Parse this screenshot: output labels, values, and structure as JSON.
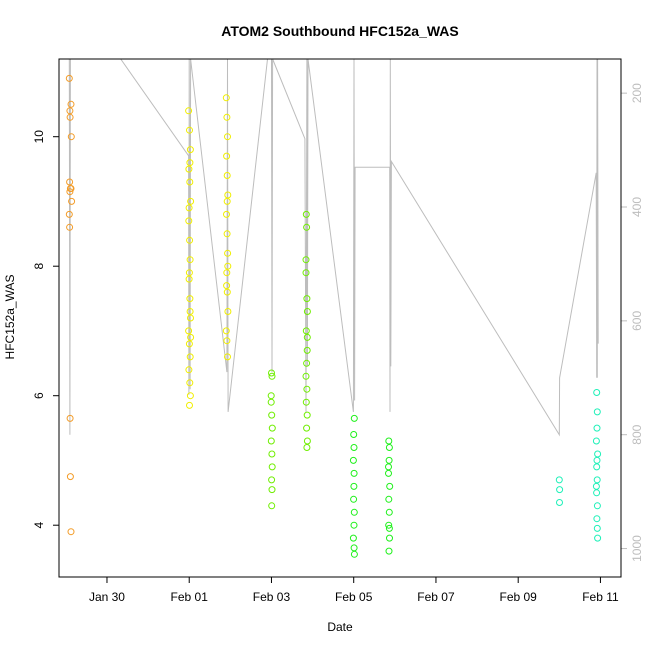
{
  "chart_data": {
    "type": "scatter",
    "title": "ATOM2 Southbound HFC152a_WAS",
    "xlabel": "Date",
    "ylabel": "HFC152a_WAS",
    "x_unit": "days in 2017-01-29 .. 2017-02-11 window, plotted against Date axis",
    "xlim": [
      "2017-01-28T20:00",
      "2017-02-11T12:00"
    ],
    "ylim": [
      3.2,
      11.2
    ],
    "y2lim": [
      1050,
      140
    ],
    "x_ticks": [
      {
        "date": "2017-01-30T00:00",
        "label": "Jan 30"
      },
      {
        "date": "2017-02-01T00:00",
        "label": "Feb 01"
      },
      {
        "date": "2017-02-03T00:00",
        "label": "Feb 03"
      },
      {
        "date": "2017-02-05T00:00",
        "label": "Feb 05"
      },
      {
        "date": "2017-02-07T00:00",
        "label": "Feb 07"
      },
      {
        "date": "2017-02-09T00:00",
        "label": "Feb 09"
      },
      {
        "date": "2017-02-11T00:00",
        "label": "Feb 11"
      }
    ],
    "y_ticks": [
      4,
      6,
      8,
      10
    ],
    "y2_ticks": [
      200,
      400,
      600,
      800,
      1000
    ],
    "grid": false,
    "series": [
      {
        "color": "#f39c28",
        "points": [
          [
            "2017-01-29T02:00",
            10.9
          ],
          [
            "2017-01-29T02:20",
            10.4
          ],
          [
            "2017-01-29T02:30",
            10.3
          ],
          [
            "2017-01-29T03:00",
            10.5
          ],
          [
            "2017-01-29T03:10",
            10.0
          ],
          [
            "2017-01-29T02:10",
            9.3
          ],
          [
            "2017-01-29T02:40",
            9.2
          ],
          [
            "2017-01-29T03:00",
            9.2
          ],
          [
            "2017-01-29T02:20",
            9.15
          ],
          [
            "2017-01-29T03:20",
            9.0
          ],
          [
            "2017-01-29T02:00",
            8.8
          ],
          [
            "2017-01-29T02:10",
            8.6
          ],
          [
            "2017-01-29T02:30",
            5.65
          ],
          [
            "2017-01-29T02:40",
            4.75
          ],
          [
            "2017-01-29T03:00",
            3.9
          ]
        ]
      },
      {
        "color": "#f0ee00",
        "points": [
          [
            "2017-01-31T23:40",
            10.4
          ],
          [
            "2017-02-01T00:10",
            10.1
          ],
          [
            "2017-02-01T00:40",
            9.8
          ],
          [
            "2017-01-31T23:50",
            9.5
          ],
          [
            "2017-02-01T00:20",
            9.3
          ],
          [
            "2017-02-01T00:50",
            9.0
          ],
          [
            "2017-01-31T23:45",
            8.7
          ],
          [
            "2017-02-01T00:15",
            8.4
          ],
          [
            "2017-02-01T00:30",
            8.1
          ],
          [
            "2017-01-31T23:55",
            7.8
          ],
          [
            "2017-02-01T00:25",
            7.5
          ],
          [
            "2017-02-01T00:45",
            7.2
          ],
          [
            "2017-01-31T23:40",
            7.0
          ],
          [
            "2017-02-01T00:05",
            6.8
          ],
          [
            "2017-02-01T00:35",
            6.6
          ],
          [
            "2017-01-31T23:50",
            6.4
          ],
          [
            "2017-02-01T00:20",
            6.2
          ],
          [
            "2017-02-01T00:40",
            6.0
          ],
          [
            "2017-02-01T00:10",
            5.85
          ],
          [
            "2017-02-01T00:30",
            7.3
          ],
          [
            "2017-01-31T23:55",
            8.9
          ],
          [
            "2017-02-01T00:25",
            9.6
          ],
          [
            "2017-02-01T00:05",
            7.9
          ],
          [
            "2017-02-01T00:50",
            6.9
          ],
          [
            "2017-02-01T21:40",
            10.6
          ],
          [
            "2017-02-01T22:00",
            10.3
          ],
          [
            "2017-02-01T22:20",
            10.0
          ],
          [
            "2017-02-01T21:50",
            9.7
          ],
          [
            "2017-02-01T22:10",
            9.4
          ],
          [
            "2017-02-01T22:30",
            9.1
          ],
          [
            "2017-02-01T21:45",
            8.8
          ],
          [
            "2017-02-01T22:05",
            8.5
          ],
          [
            "2017-02-01T22:25",
            8.2
          ],
          [
            "2017-02-01T21:55",
            7.9
          ],
          [
            "2017-02-01T22:15",
            7.6
          ],
          [
            "2017-02-01T22:35",
            7.3
          ],
          [
            "2017-02-01T21:40",
            7.0
          ],
          [
            "2017-02-01T22:00",
            6.85
          ],
          [
            "2017-02-01T22:20",
            6.6
          ],
          [
            "2017-02-01T22:10",
            9.0
          ],
          [
            "2017-02-01T21:50",
            7.7
          ],
          [
            "2017-02-01T22:30",
            8.0
          ]
        ]
      },
      {
        "color": "#6fee00",
        "points": [
          [
            "2017-02-03T00:00",
            6.35
          ],
          [
            "2017-02-03T00:20",
            6.3
          ],
          [
            "2017-02-02T23:50",
            6.0
          ],
          [
            "2017-02-03T00:10",
            5.7
          ],
          [
            "2017-02-03T00:30",
            5.5
          ],
          [
            "2017-02-02T23:55",
            5.3
          ],
          [
            "2017-02-03T00:15",
            5.1
          ],
          [
            "2017-02-03T00:25",
            4.9
          ],
          [
            "2017-02-03T00:05",
            4.7
          ],
          [
            "2017-02-03T00:20",
            4.55
          ],
          [
            "2017-02-03T00:10",
            4.3
          ],
          [
            "2017-02-02T23:50",
            5.9
          ],
          [
            "2017-02-03T20:20",
            8.8
          ],
          [
            "2017-02-03T20:30",
            8.6
          ],
          [
            "2017-02-03T20:10",
            8.1
          ],
          [
            "2017-02-03T20:40",
            7.5
          ],
          [
            "2017-02-03T21:00",
            7.3
          ],
          [
            "2017-02-03T20:20",
            7.0
          ],
          [
            "2017-02-03T20:50",
            6.7
          ],
          [
            "2017-02-03T20:30",
            6.5
          ],
          [
            "2017-02-03T20:10",
            6.3
          ],
          [
            "2017-02-03T20:40",
            6.1
          ],
          [
            "2017-02-03T20:20",
            5.9
          ],
          [
            "2017-02-03T20:50",
            5.7
          ],
          [
            "2017-02-03T20:30",
            5.5
          ],
          [
            "2017-02-03T21:00",
            5.3
          ],
          [
            "2017-02-03T20:40",
            5.2
          ],
          [
            "2017-02-03T20:10",
            7.9
          ],
          [
            "2017-02-03T20:55",
            6.9
          ]
        ]
      },
      {
        "color": "#1ef01a",
        "points": [
          [
            "2017-02-05T00:00",
            5.4
          ],
          [
            "2017-02-05T00:20",
            5.65
          ],
          [
            "2017-02-05T00:10",
            5.2
          ],
          [
            "2017-02-04T23:50",
            5.0
          ],
          [
            "2017-02-05T00:15",
            4.8
          ],
          [
            "2017-02-05T00:05",
            4.6
          ],
          [
            "2017-02-04T23:55",
            4.4
          ],
          [
            "2017-02-05T00:20",
            4.2
          ],
          [
            "2017-02-05T00:10",
            4.0
          ],
          [
            "2017-02-04T23:50",
            3.8
          ],
          [
            "2017-02-05T00:15",
            3.65
          ],
          [
            "2017-02-05T00:25",
            3.55
          ],
          [
            "2017-02-05T20:30",
            5.3
          ],
          [
            "2017-02-05T20:50",
            5.2
          ],
          [
            "2017-02-05T20:40",
            5.0
          ],
          [
            "2017-02-05T20:20",
            4.8
          ],
          [
            "2017-02-05T21:00",
            4.6
          ],
          [
            "2017-02-05T20:30",
            4.4
          ],
          [
            "2017-02-05T20:45",
            4.2
          ],
          [
            "2017-02-05T20:25",
            4.0
          ],
          [
            "2017-02-05T20:55",
            3.8
          ],
          [
            "2017-02-05T20:35",
            3.6
          ],
          [
            "2017-02-05T20:50",
            3.95
          ],
          [
            "2017-02-05T20:20",
            4.9
          ]
        ]
      },
      {
        "color": "#1ef0b8",
        "points": [
          [
            "2017-02-10T00:00",
            4.7
          ],
          [
            "2017-02-10T00:10",
            4.55
          ],
          [
            "2017-02-10T00:05",
            4.35
          ],
          [
            "2017-02-10T21:50",
            6.05
          ],
          [
            "2017-02-10T22:10",
            5.75
          ],
          [
            "2017-02-10T22:00",
            5.5
          ],
          [
            "2017-02-10T21:40",
            5.3
          ],
          [
            "2017-02-10T22:20",
            5.1
          ],
          [
            "2017-02-10T21:50",
            4.9
          ],
          [
            "2017-02-10T22:05",
            4.7
          ],
          [
            "2017-02-10T21:45",
            4.5
          ],
          [
            "2017-02-10T22:15",
            4.3
          ],
          [
            "2017-02-10T21:55",
            4.1
          ],
          [
            "2017-02-10T22:10",
            3.95
          ],
          [
            "2017-02-10T22:20",
            3.8
          ],
          [
            "2017-02-10T21:40",
            4.6
          ],
          [
            "2017-02-10T22:00",
            5.0
          ]
        ]
      }
    ],
    "altitude_track": {
      "color": "#bdbdbd",
      "axis": "y2",
      "points": [
        [
          "2017-01-29T02:00",
          140
        ],
        [
          "2017-01-29T02:20",
          800
        ],
        [
          "2017-01-29T02:40",
          140
        ],
        [
          "2017-01-30T08:00",
          140
        ],
        [
          "2017-01-31T23:40",
          310
        ],
        [
          "2017-01-31T23:50",
          730
        ],
        [
          "2017-02-01T00:00",
          140
        ],
        [
          "2017-02-01T00:30",
          720
        ],
        [
          "2017-02-01T00:50",
          140
        ],
        [
          "2017-02-01T22:00",
          690
        ],
        [
          "2017-02-01T22:20",
          140
        ],
        [
          "2017-02-01T22:40",
          760
        ],
        [
          "2017-02-02T21:40",
          140
        ],
        [
          "2017-02-03T00:00",
          140
        ],
        [
          "2017-02-03T00:20",
          690
        ],
        [
          "2017-02-03T00:40",
          140
        ],
        [
          "2017-02-03T19:30",
          280
        ],
        [
          "2017-02-03T20:10",
          760
        ],
        [
          "2017-02-03T20:40",
          140
        ],
        [
          "2017-02-03T21:00",
          680
        ],
        [
          "2017-02-03T21:20",
          140
        ],
        [
          "2017-02-04T23:50",
          760
        ],
        [
          "2017-02-05T00:10",
          140
        ],
        [
          "2017-02-05T00:30",
          740
        ],
        [
          "2017-02-05T00:50",
          330
        ],
        [
          "2017-02-05T21:00",
          330
        ],
        [
          "2017-02-05T21:10",
          760
        ],
        [
          "2017-02-05T21:20",
          140
        ],
        [
          "2017-02-05T21:40",
          680
        ],
        [
          "2017-02-05T22:00",
          320
        ],
        [
          "2017-02-10T00:00",
          800
        ],
        [
          "2017-02-10T00:10",
          700
        ],
        [
          "2017-02-10T21:30",
          340
        ],
        [
          "2017-02-10T21:50",
          700
        ],
        [
          "2017-02-10T22:00",
          140
        ],
        [
          "2017-02-10T22:10",
          700
        ],
        [
          "2017-02-10T22:20",
          140
        ],
        [
          "2017-02-10T22:40",
          640
        ]
      ]
    }
  }
}
